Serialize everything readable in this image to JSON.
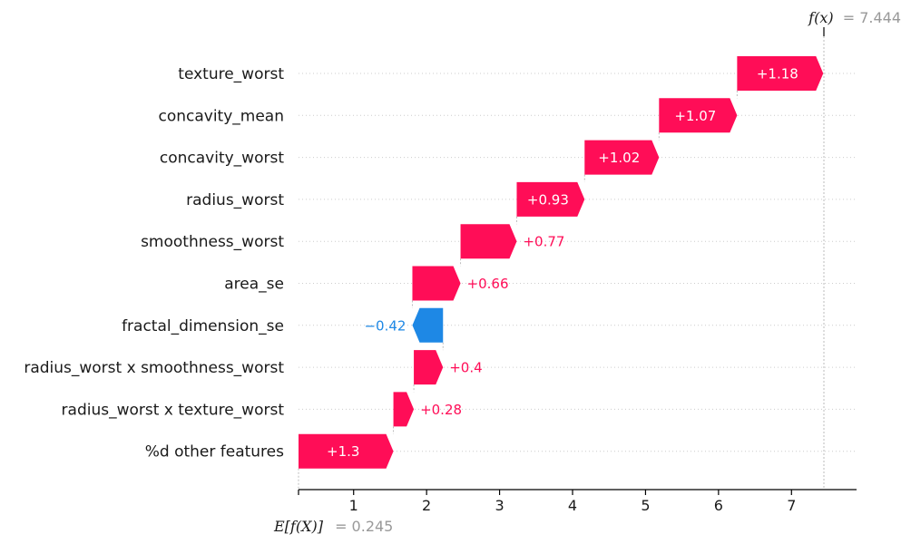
{
  "chart_data": {
    "type": "waterfall",
    "base_value": 0.245,
    "final_value": 7.444,
    "xlim": [
      0.0,
      7.7
    ],
    "xticks": [
      1,
      2,
      3,
      4,
      5,
      6,
      7
    ],
    "features": [
      {
        "name": "texture_worst",
        "value": 1.18,
        "label": "+1.18"
      },
      {
        "name": "concavity_mean",
        "value": 1.07,
        "label": "+1.07"
      },
      {
        "name": "concavity_worst",
        "value": 1.02,
        "label": "+1.02"
      },
      {
        "name": "radius_worst",
        "value": 0.93,
        "label": "+0.93"
      },
      {
        "name": "smoothness_worst",
        "value": 0.77,
        "label": "+0.77"
      },
      {
        "name": "area_se",
        "value": 0.66,
        "label": "+0.66"
      },
      {
        "name": "fractal_dimension_se",
        "value": -0.42,
        "label": "−0.42"
      },
      {
        "name": "radius_worst x smoothness_worst",
        "value": 0.4,
        "label": "+0.4"
      },
      {
        "name": "radius_worst x texture_worst",
        "value": 0.28,
        "label": "+0.28"
      },
      {
        "name": "%d other features",
        "value": 1.3,
        "label": "+1.3"
      }
    ],
    "annotations": {
      "fx_label": "f(x)",
      "fx_value": "= 7.444",
      "ex_label": "E[f(X)]",
      "ex_value": "= 0.245"
    },
    "colors": {
      "positive": "#ff0d57",
      "negative": "#1e88e5",
      "text": "#1a1a1a",
      "muted": "#999999"
    }
  }
}
